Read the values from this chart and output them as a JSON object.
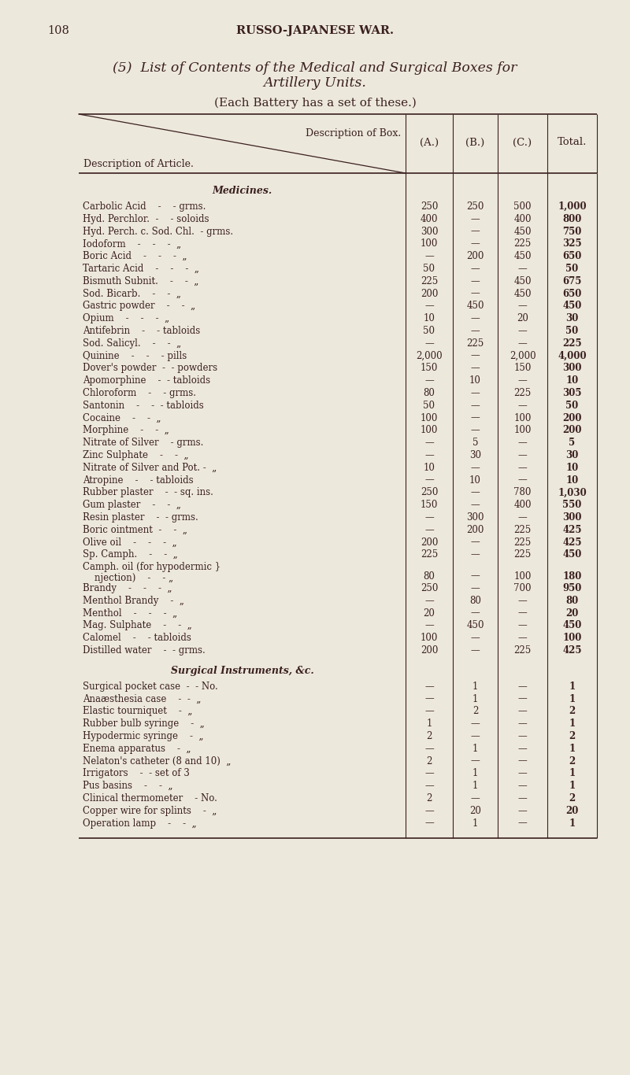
{
  "bg_color": "#ede8dc",
  "text_color": "#3a2020",
  "page_number": "108",
  "page_header": "RUSSO-JAPANESE WAR.",
  "title_line1": "(5)  List of Contents of the Medical and Surgical Boxes for",
  "title_line2": "Artillery Units.",
  "subtitle": "(Each Battery has a set of these.)",
  "col_headers": [
    "(A.)",
    "(B.)",
    "(C.)",
    "Total."
  ],
  "header_box_label": "Description of Box.",
  "header_article_label": "Description of Article.",
  "section_medicines": "Medicines.",
  "section_surgical": "Surgical Instruments, &c.",
  "rows": [
    {
      "name": "Carbolic Acid    -    - grms.",
      "a": "250",
      "b": "250",
      "c": "500",
      "t": "1,000"
    },
    {
      "name": "Hyd. Perchlor.  -    - soloids",
      "a": "400",
      "b": "—",
      "c": "400",
      "t": "800"
    },
    {
      "name": "Hyd. Perch. c. Sod. Chl.  - grms.",
      "a": "300",
      "b": "—",
      "c": "450",
      "t": "750"
    },
    {
      "name": "Iodoform    -    -    -  „",
      "a": "100",
      "b": "—",
      "c": "225",
      "t": "325"
    },
    {
      "name": "Boric Acid    -    -    -  „",
      "a": "—",
      "b": "200",
      "c": "450",
      "t": "650"
    },
    {
      "name": "Tartaric Acid    -    -    -  „",
      "a": "50",
      "b": "—",
      "c": "—",
      "t": "50"
    },
    {
      "name": "Bismuth Subnit.    -    -  „",
      "a": "225",
      "b": "—",
      "c": "450",
      "t": "675"
    },
    {
      "name": "Sod. Bicarb.    -    -  „",
      "a": "200",
      "b": "—",
      "c": "450",
      "t": "650"
    },
    {
      "name": "Gastric powder    -    -  „",
      "a": "—",
      "b": "450",
      "c": "—",
      "t": "450"
    },
    {
      "name": "Opium    -    -    -  „",
      "a": "10",
      "b": "—",
      "c": "20",
      "t": "30"
    },
    {
      "name": "Antifebrin    -    - tabloids",
      "a": "50",
      "b": "—",
      "c": "—",
      "t": "50"
    },
    {
      "name": "Sod. Salicyl.    -    -  „",
      "a": "—",
      "b": "225",
      "c": "—",
      "t": "225"
    },
    {
      "name": "Quinine    -    -    - pills",
      "a": "2,000",
      "b": "—",
      "c": "2,000",
      "t": "4,000"
    },
    {
      "name": "Dover's powder  -  - powders",
      "a": "150",
      "b": "—",
      "c": "150",
      "t": "300"
    },
    {
      "name": "Apomorphine    -  - tabloids",
      "a": "—",
      "b": "10",
      "c": "—",
      "t": "10"
    },
    {
      "name": "Chloroform    -    - grms.",
      "a": "80",
      "b": "—",
      "c": "225",
      "t": "305"
    },
    {
      "name": "Santonin    -    -  - tabloids",
      "a": "50",
      "b": "—",
      "c": "—",
      "t": "50"
    },
    {
      "name": "Cocaine    -    -  „",
      "a": "100",
      "b": "—",
      "c": "100",
      "t": "200"
    },
    {
      "name": "Morphine    -    -  „",
      "a": "100",
      "b": "—",
      "c": "100",
      "t": "200"
    },
    {
      "name": "Nitrate of Silver    - grms.",
      "a": "—",
      "b": "5",
      "c": "—",
      "t": "5"
    },
    {
      "name": "Zinc Sulphate    -    -  „",
      "a": "—",
      "b": "30",
      "c": "—",
      "t": "30"
    },
    {
      "name": "Nitrate of Silver and Pot. -  „",
      "a": "10",
      "b": "—",
      "c": "—",
      "t": "10"
    },
    {
      "name": "Atropine    -    - tabloids",
      "a": "—",
      "b": "10",
      "c": "—",
      "t": "10"
    },
    {
      "name": "Rubber plaster    -  - sq. ins.",
      "a": "250",
      "b": "—",
      "c": "780",
      "t": "1,030"
    },
    {
      "name": "Gum plaster    -    -  „",
      "a": "150",
      "b": "—",
      "c": "400",
      "t": "550"
    },
    {
      "name": "Resin plaster    -  - grms.",
      "a": "—",
      "b": "300",
      "c": "—",
      "t": "300"
    },
    {
      "name": "Boric ointment  -    -  „",
      "a": "—",
      "b": "200",
      "c": "225",
      "t": "425"
    },
    {
      "name": "Olive oil    -    -    -  „",
      "a": "200",
      "b": "—",
      "c": "225",
      "t": "425"
    },
    {
      "name": "Sp. Camph.    -    -  „",
      "a": "225",
      "b": "—",
      "c": "225",
      "t": "450"
    },
    {
      "name": "Camph. oil (for hypodermic }",
      "a": "80",
      "b": "—",
      "c": "100",
      "t": "180",
      "name2": "    njection)    -    - „"
    },
    {
      "name": "Brandy    -    -    -  „",
      "a": "250",
      "b": "—",
      "c": "700",
      "t": "950"
    },
    {
      "name": "Menthol Brandy    -  „",
      "a": "—",
      "b": "80",
      "c": "—",
      "t": "80"
    },
    {
      "name": "Menthol    -    -    -  „",
      "a": "20",
      "b": "—",
      "c": "—",
      "t": "20"
    },
    {
      "name": "Mag. Sulphate    -    -  „",
      "a": "—",
      "b": "450",
      "c": "—",
      "t": "450"
    },
    {
      "name": "Calomel    -    - tabloids",
      "a": "100",
      "b": "—",
      "c": "—",
      "t": "100"
    },
    {
      "name": "Distilled water    -  - grms.",
      "a": "200",
      "b": "—",
      "c": "225",
      "t": "425"
    }
  ],
  "surgical_rows": [
    {
      "name": "Surgical pocket case  -  - No.",
      "a": "—",
      "b": "1",
      "c": "—",
      "t": "1"
    },
    {
      "name": "Anaæsthesia case    -  -  „",
      "a": "—",
      "b": "1",
      "c": "—",
      "t": "1"
    },
    {
      "name": "Elastic tourniquet    -  „",
      "a": "—",
      "b": "2",
      "c": "—",
      "t": "2"
    },
    {
      "name": "Rubber bulb syringe    -  „",
      "a": "1",
      "b": "—",
      "c": "—",
      "t": "1"
    },
    {
      "name": "Hypodermic syringe    -  „",
      "a": "2",
      "b": "—",
      "c": "—",
      "t": "2"
    },
    {
      "name": "Enema apparatus    -  „",
      "a": "—",
      "b": "1",
      "c": "—",
      "t": "1"
    },
    {
      "name": "Nelaton's catheter (8 and 10)  „",
      "a": "2",
      "b": "—",
      "c": "—",
      "t": "2"
    },
    {
      "name": "Irrigators    -  - set of 3",
      "a": "—",
      "b": "1",
      "c": "—",
      "t": "1"
    },
    {
      "name": "Pus basins    -    -  „",
      "a": "—",
      "b": "1",
      "c": "—",
      "t": "1"
    },
    {
      "name": "Clinical thermometer    - No.",
      "a": "2",
      "b": "—",
      "c": "—",
      "t": "2"
    },
    {
      "name": "Copper wire for splints    -  „",
      "a": "—",
      "b": "20",
      "c": "—",
      "t": "20"
    },
    {
      "name": "Operation lamp    -    -  „",
      "a": "—",
      "b": "1",
      "c": "—",
      "t": "1"
    }
  ]
}
